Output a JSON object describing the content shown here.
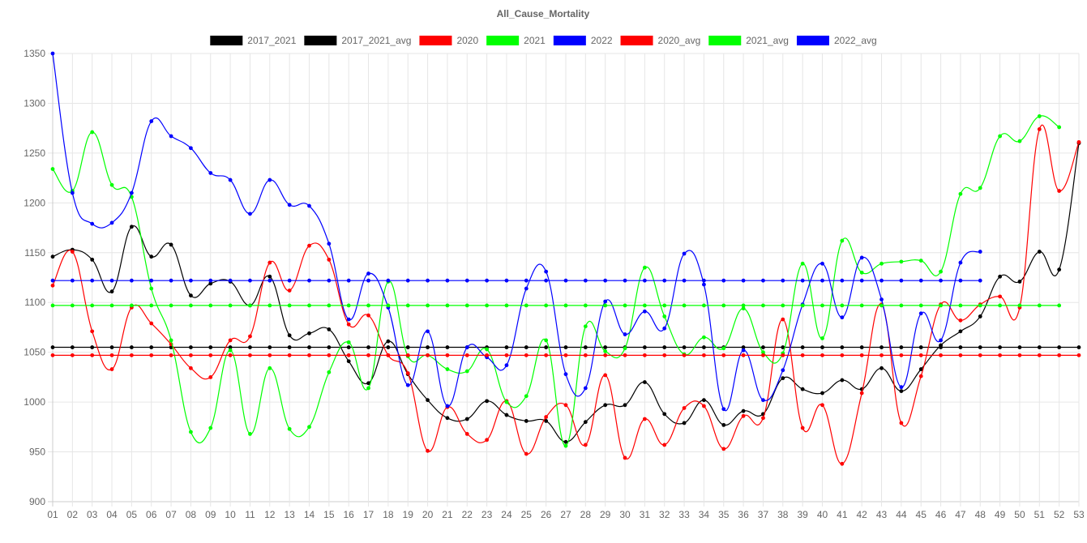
{
  "chart_data": {
    "type": "line",
    "title": "All_Cause_Mortality",
    "xlabel": "",
    "ylabel": "",
    "ylim": [
      900,
      1350
    ],
    "yticks": [
      900,
      950,
      1000,
      1050,
      1100,
      1150,
      1200,
      1250,
      1300,
      1350
    ],
    "legend_position": "top",
    "grid": true,
    "categories": [
      "01",
      "02",
      "03",
      "04",
      "05",
      "06",
      "07",
      "08",
      "09",
      "10",
      "11",
      "12",
      "13",
      "14",
      "15",
      "16",
      "17",
      "18",
      "19",
      "20",
      "21",
      "22",
      "23",
      "24",
      "25",
      "26",
      "27",
      "28",
      "29",
      "30",
      "31",
      "32",
      "33",
      "34",
      "35",
      "36",
      "37",
      "38",
      "39",
      "40",
      "41",
      "42",
      "43",
      "44",
      "45",
      "46",
      "47",
      "48",
      "49",
      "50",
      "51",
      "52",
      "53"
    ],
    "series": [
      {
        "name": "2017_2021",
        "color": "#000000",
        "values": [
          1146,
          1153,
          1143,
          1111,
          1176,
          1146,
          1158,
          1107,
          1119,
          1121,
          1097,
          1126,
          1067,
          1069,
          1073,
          1041,
          1019,
          1061,
          1028,
          1002,
          984,
          983,
          1001,
          987,
          981,
          981,
          960,
          980,
          997,
          997,
          1020,
          988,
          979,
          1002,
          977,
          991,
          988,
          1024,
          1013,
          1009,
          1022,
          1013,
          1034,
          1011,
          1033,
          1057,
          1071,
          1086,
          1126,
          1121,
          1151,
          1133,
          1260
        ]
      },
      {
        "name": "2017_2021_avg",
        "color": "#000000",
        "values": [
          1055,
          1055,
          1055,
          1055,
          1055,
          1055,
          1055,
          1055,
          1055,
          1055,
          1055,
          1055,
          1055,
          1055,
          1055,
          1055,
          1055,
          1055,
          1055,
          1055,
          1055,
          1055,
          1055,
          1055,
          1055,
          1055,
          1055,
          1055,
          1055,
          1055,
          1055,
          1055,
          1055,
          1055,
          1055,
          1055,
          1055,
          1055,
          1055,
          1055,
          1055,
          1055,
          1055,
          1055,
          1055,
          1055,
          1055,
          1055,
          1055,
          1055,
          1055,
          1055,
          1055
        ]
      },
      {
        "name": "2020",
        "color": "#ff0000",
        "values": [
          1117,
          1151,
          1071,
          1033,
          1095,
          1079,
          1058,
          1034,
          1025,
          1062,
          1066,
          1140,
          1112,
          1157,
          1143,
          1078,
          1087,
          1047,
          1029,
          951,
          995,
          968,
          962,
          1001,
          948,
          985,
          997,
          957,
          1027,
          944,
          983,
          957,
          994,
          996,
          953,
          986,
          984,
          1083,
          974,
          997,
          938,
          1009,
          1098,
          979,
          1026,
          1098,
          1082,
          1098,
          1106,
          1095,
          1274,
          1212,
          1261
        ]
      },
      {
        "name": "2021",
        "color": "#00ff00",
        "values": [
          1234,
          1212,
          1271,
          1218,
          1206,
          1114,
          1062,
          970,
          974,
          1052,
          968,
          1034,
          973,
          975,
          1030,
          1060,
          1014,
          1121,
          1046,
          1047,
          1033,
          1031,
          1053,
          1000,
          1006,
          1062,
          956,
          1076,
          1051,
          1054,
          1135,
          1086,
          1048,
          1065,
          1054,
          1094,
          1050,
          1049,
          1139,
          1064,
          1162,
          1130,
          1139,
          1141,
          1142,
          1131,
          1209,
          1215,
          1267,
          1262,
          1287,
          1276,
          null
        ]
      },
      {
        "name": "2022",
        "color": "#0000ff",
        "values": [
          1350,
          1210,
          1179,
          1180,
          1210,
          1282,
          1267,
          1255,
          1230,
          1223,
          1189,
          1223,
          1198,
          1197,
          1159,
          1083,
          1129,
          1095,
          1017,
          1071,
          996,
          1055,
          1045,
          1037,
          1114,
          1131,
          1028,
          1014,
          1101,
          1068,
          1091,
          1074,
          1149,
          1118,
          993,
          1052,
          1002,
          1032,
          1098,
          1139,
          1085,
          1145,
          1103,
          1015,
          1089,
          1062,
          1140,
          1151,
          null,
          null,
          null,
          null,
          null
        ]
      },
      {
        "name": "2020_avg",
        "color": "#ff0000",
        "values": [
          1047,
          1047,
          1047,
          1047,
          1047,
          1047,
          1047,
          1047,
          1047,
          1047,
          1047,
          1047,
          1047,
          1047,
          1047,
          1047,
          1047,
          1047,
          1047,
          1047,
          1047,
          1047,
          1047,
          1047,
          1047,
          1047,
          1047,
          1047,
          1047,
          1047,
          1047,
          1047,
          1047,
          1047,
          1047,
          1047,
          1047,
          1047,
          1047,
          1047,
          1047,
          1047,
          1047,
          1047,
          1047,
          1047,
          1047,
          1047,
          1047,
          1047,
          1047,
          1047,
          1047
        ]
      },
      {
        "name": "2021_avg",
        "color": "#00ff00",
        "values": [
          1097,
          1097,
          1097,
          1097,
          1097,
          1097,
          1097,
          1097,
          1097,
          1097,
          1097,
          1097,
          1097,
          1097,
          1097,
          1097,
          1097,
          1097,
          1097,
          1097,
          1097,
          1097,
          1097,
          1097,
          1097,
          1097,
          1097,
          1097,
          1097,
          1097,
          1097,
          1097,
          1097,
          1097,
          1097,
          1097,
          1097,
          1097,
          1097,
          1097,
          1097,
          1097,
          1097,
          1097,
          1097,
          1097,
          1097,
          1097,
          1097,
          1097,
          1097,
          1097,
          null
        ]
      },
      {
        "name": "2022_avg",
        "color": "#0000ff",
        "values": [
          1122,
          1122,
          1122,
          1122,
          1122,
          1122,
          1122,
          1122,
          1122,
          1122,
          1122,
          1122,
          1122,
          1122,
          1122,
          1122,
          1122,
          1122,
          1122,
          1122,
          1122,
          1122,
          1122,
          1122,
          1122,
          1122,
          1122,
          1122,
          1122,
          1122,
          1122,
          1122,
          1122,
          1122,
          1122,
          1122,
          1122,
          1122,
          1122,
          1122,
          1122,
          1122,
          1122,
          1122,
          1122,
          1122,
          1122,
          1122,
          null,
          null,
          null,
          null,
          null
        ]
      }
    ]
  }
}
